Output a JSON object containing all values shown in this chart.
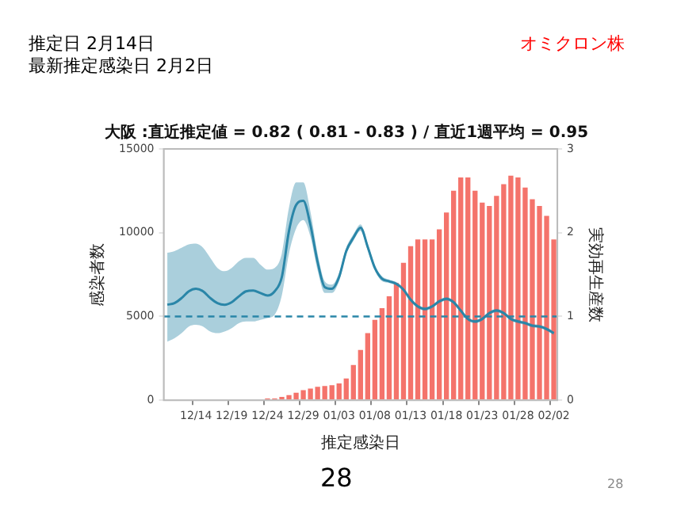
{
  "chart_data": {
    "type": "bar",
    "title": "大阪 :直近推定値 = 0.82 ( 0.81 - 0.83 ) / 直近1週平均 = 0.95",
    "annotations": [
      "推定日  2月14日",
      "最新推定感染日  2月2日",
      "オミクロン株",
      "28",
      "28"
    ],
    "xlabel": "推定感染日",
    "ylabel": "感染者数",
    "y2label": "実効再生産数",
    "categories": [
      null,
      null,
      null,
      null,
      "12/14",
      null,
      null,
      null,
      null,
      "12/19",
      null,
      null,
      null,
      null,
      "12/24",
      null,
      null,
      null,
      null,
      "12/29",
      null,
      null,
      null,
      null,
      "01/03",
      null,
      null,
      null,
      null,
      "01/08",
      null,
      null,
      null,
      null,
      "01/13",
      null,
      null,
      null,
      null,
      "01/18",
      null,
      null,
      null,
      null,
      "01/23",
      null,
      null,
      null,
      null,
      "01/28",
      null,
      null,
      null,
      null,
      "02/02"
    ],
    "series": [
      {
        "color": "#f4736b",
        "values": [
          0,
          0,
          0,
          0,
          0,
          0,
          0,
          0,
          0,
          0,
          0,
          0,
          0,
          0,
          100,
          100,
          200,
          300,
          450,
          600,
          700,
          800,
          850,
          900,
          1000,
          1300,
          2100,
          3000,
          4000,
          4800,
          5500,
          6200,
          7000,
          8200,
          9200,
          9600,
          9600,
          9600,
          10200,
          11200,
          12500,
          13300,
          13300,
          12500,
          11800,
          11600,
          12200,
          12900,
          13400,
          13300,
          12700,
          12000,
          11600,
          11000,
          9600
        ]
      },
      {
        "type": "line",
        "axis": "y2",
        "color": "#2a86a8",
        "values": [
          1.14,
          1.16,
          1.22,
          1.3,
          1.33,
          1.3,
          1.22,
          1.16,
          1.14,
          1.17,
          1.24,
          1.3,
          1.31,
          1.28,
          1.25,
          1.3,
          1.47,
          2.02,
          2.33,
          2.38,
          2.09,
          1.65,
          1.35,
          1.33,
          1.47,
          1.78,
          1.94,
          2.06,
          1.83,
          1.58,
          1.45,
          1.42,
          1.39,
          1.32,
          1.2,
          1.12,
          1.09,
          1.12,
          1.18,
          1.21,
          1.17,
          1.07,
          0.97,
          0.94,
          0.97,
          1.04,
          1.07,
          1.04,
          0.97,
          0.94,
          0.92,
          0.89,
          0.88,
          0.85,
          0.8
        ],
        "upper": [
          1.76,
          1.78,
          1.82,
          1.86,
          1.87,
          1.82,
          1.7,
          1.58,
          1.54,
          1.58,
          1.66,
          1.7,
          1.7,
          1.62,
          1.56,
          1.58,
          1.75,
          2.3,
          2.6,
          2.6,
          2.25,
          1.75,
          1.42,
          1.38,
          1.52,
          1.82,
          1.98,
          2.1,
          1.87,
          1.61,
          1.48,
          1.44,
          1.41,
          1.34,
          1.22,
          1.14,
          1.11,
          1.14,
          1.2,
          1.23,
          1.19,
          1.09,
          0.99,
          0.96,
          0.99,
          1.06,
          1.09,
          1.06,
          0.99,
          0.96,
          0.94,
          0.91,
          0.9,
          0.87,
          0.82
        ],
        "lower": [
          0.7,
          0.74,
          0.8,
          0.88,
          0.9,
          0.88,
          0.82,
          0.8,
          0.82,
          0.86,
          0.92,
          0.94,
          0.94,
          0.96,
          0.98,
          1.02,
          1.25,
          1.75,
          2.05,
          2.15,
          1.95,
          1.55,
          1.28,
          1.28,
          1.42,
          1.74,
          1.9,
          2.02,
          1.79,
          1.55,
          1.42,
          1.4,
          1.37,
          1.3,
          1.18,
          1.1,
          1.07,
          1.1,
          1.16,
          1.19,
          1.15,
          1.05,
          0.95,
          0.92,
          0.95,
          1.02,
          1.05,
          1.02,
          0.95,
          0.92,
          0.9,
          0.87,
          0.86,
          0.83,
          0.78
        ]
      }
    ],
    "ylim": [
      0,
      15000
    ],
    "yticks": [
      0,
      5000,
      10000,
      15000
    ],
    "y2lim": [
      0,
      3
    ],
    "y2ticks": [
      0,
      1,
      2,
      3
    ],
    "ref_lines": [
      {
        "axis": "y2",
        "value": 1,
        "color": "#2a86a8",
        "line_style": "dashed"
      }
    ],
    "grid": false,
    "legend": false
  }
}
